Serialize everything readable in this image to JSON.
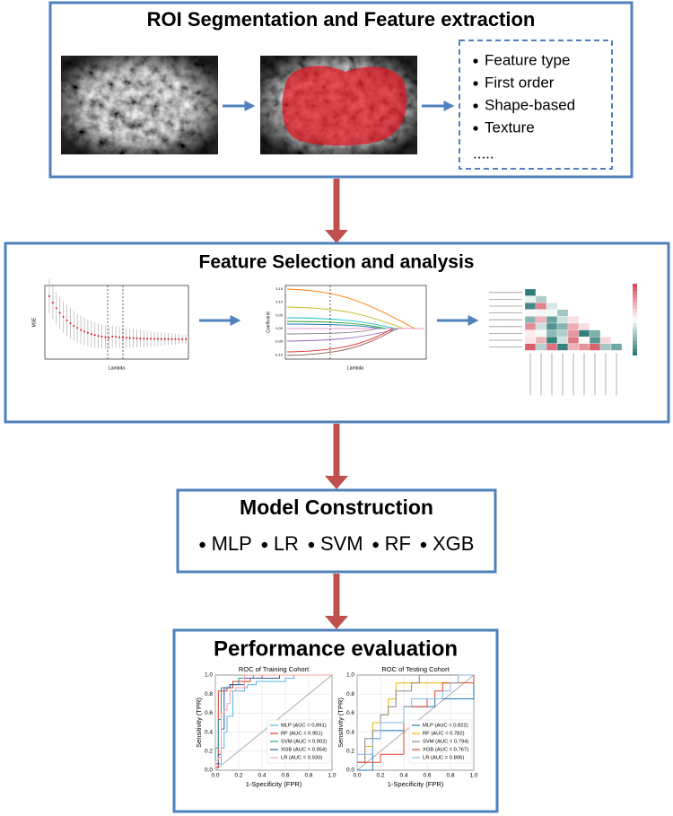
{
  "roi_panel": {
    "title": "ROI Segmentation and Feature extraction",
    "features": [
      "Feature type",
      "First order",
      "Shape-based",
      "Texture"
    ],
    "more": "....."
  },
  "selection_panel": {
    "title": "Feature Selection and analysis",
    "lasso_cv": {
      "x_label": "Lambda",
      "y_label": "MSE"
    },
    "lasso_path": {
      "x_label": "Lambda",
      "y_label": "Coefficient",
      "yticks": [
        "0.15",
        "0.10",
        "0.05",
        "0.00",
        "-0.05",
        "-0.10"
      ]
    }
  },
  "model_panel": {
    "title": "Model Construction",
    "models": [
      "MLP",
      "LR",
      "SVM",
      "RF",
      "XGB"
    ]
  },
  "performance_panel": {
    "title": "Performance evaluation",
    "roc_charts": [
      {
        "title": "ROC of Training Cohort",
        "x_label": "1-Specificity (FPR)",
        "y_label": "Sensitivity (TPR)",
        "ticks": [
          "0.0",
          "0.2",
          "0.4",
          "0.6",
          "0.8",
          "1.0"
        ],
        "legend": [
          {
            "label": "MLP (AUC = 0.891)",
            "color": "#5bb5e8"
          },
          {
            "label": "RF (AUC = 0.951)",
            "color": "#e03b2b"
          },
          {
            "label": "SVM (AUC = 0.902)",
            "color": "#2aa198"
          },
          {
            "label": "XGB (AUC = 0.954)",
            "color": "#2c5ea8"
          },
          {
            "label": "LR (AUC = 0.930)",
            "color": "#f4a0a0"
          }
        ]
      },
      {
        "title": "ROC of Testing Cohort",
        "x_label": "1-Specificity (FPR)",
        "y_label": "Sensitivity (TPR)",
        "ticks": [
          "0.0",
          "0.2",
          "0.4",
          "0.6",
          "0.8",
          "1.0"
        ],
        "legend": [
          {
            "label": "MLP (AUC = 0.822)",
            "color": "#1f77b4"
          },
          {
            "label": "RF (AUC = 0.782)",
            "color": "#f2b705"
          },
          {
            "label": "SVM (AUC = 0.794)",
            "color": "#888888"
          },
          {
            "label": "XGB (AUC = 0.767)",
            "color": "#e0442f"
          },
          {
            "label": "LR (AUC = 0.806)",
            "color": "#87b5e0"
          }
        ]
      }
    ]
  }
}
